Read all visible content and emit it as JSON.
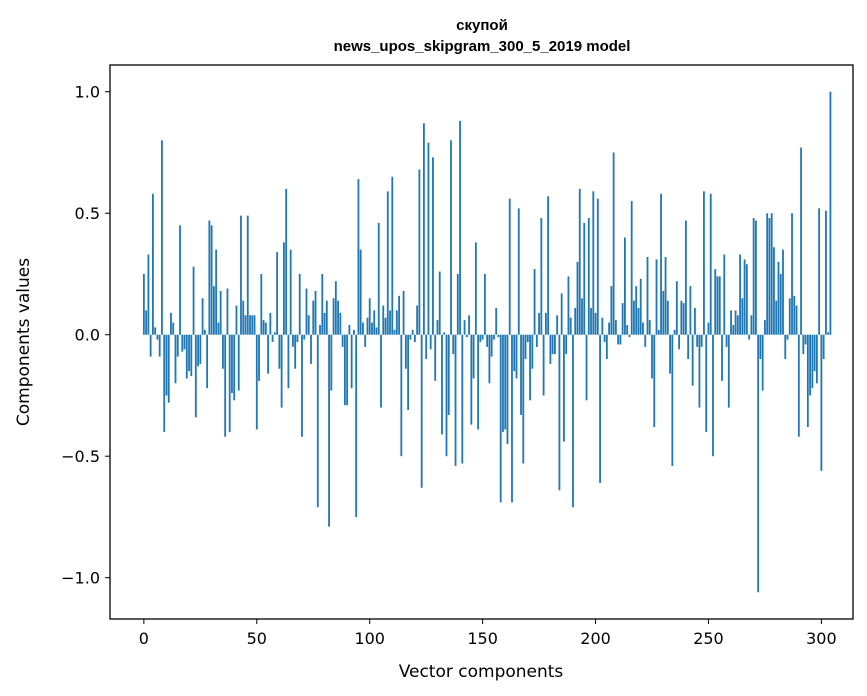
{
  "chart_data": {
    "type": "bar",
    "title": "скупой",
    "subtitle": "news_upos_skipgram_300_5_2019 model",
    "xlabel": "Vector components",
    "ylabel": "Components values",
    "xlim": [
      -15,
      314
    ],
    "ylim": [
      -1.17,
      1.11
    ],
    "xticks": [
      0,
      50,
      100,
      150,
      200,
      250,
      300
    ],
    "xtick_labels": [
      "0",
      "50",
      "100",
      "150",
      "200",
      "250",
      "300"
    ],
    "yticks": [
      1.0,
      0.5,
      0.0,
      -0.5,
      -1.0
    ],
    "ytick_labels": [
      "1.0",
      "0.5",
      "0.0",
      "−0.5",
      "−1.0"
    ],
    "bar_color": "#1f77b4",
    "values": [
      0.25,
      0.1,
      0.33,
      -0.09,
      0.58,
      0.03,
      -0.02,
      -0.09,
      0.8,
      -0.4,
      -0.25,
      -0.28,
      0.09,
      0.05,
      -0.2,
      -0.09,
      0.45,
      -0.07,
      -0.06,
      -0.18,
      -0.15,
      -0.17,
      0.28,
      -0.34,
      -0.13,
      -0.12,
      0.15,
      0.02,
      -0.22,
      0.47,
      0.45,
      0.2,
      0.35,
      0.05,
      0.18,
      -0.14,
      -0.42,
      0.19,
      -0.4,
      -0.24,
      -0.27,
      0.12,
      -0.23,
      0.49,
      0.14,
      0.08,
      0.49,
      0.08,
      0.08,
      0.08,
      -0.39,
      -0.19,
      0.25,
      0.06,
      0.05,
      -0.16,
      0.09,
      -0.03,
      0.01,
      0.34,
      -0.14,
      -0.3,
      0.38,
      0.6,
      -0.22,
      0.35,
      -0.05,
      -0.14,
      -0.03,
      0.25,
      -0.42,
      -0.02,
      0.19,
      0.08,
      -0.12,
      0.14,
      0.18,
      -0.71,
      0.04,
      0.25,
      0.09,
      0.14,
      -0.79,
      -0.23,
      0.15,
      0.22,
      0.14,
      0.09,
      -0.05,
      -0.29,
      -0.29,
      0.04,
      -0.22,
      0.02,
      -0.75,
      0.64,
      0.35,
      0.05,
      -0.05,
      0.07,
      0.15,
      0.05,
      0.1,
      0.03,
      0.46,
      -0.3,
      0.12,
      0.07,
      0.59,
      0.1,
      0.65,
      0.02,
      0.1,
      0.16,
      -0.5,
      0.18,
      -0.14,
      -0.31,
      -0.02,
      0.02,
      -0.03,
      0.12,
      0.68,
      -0.63,
      0.87,
      -0.1,
      0.79,
      -0.06,
      0.73,
      -0.19,
      0.06,
      0.26,
      -0.41,
      0.01,
      -0.5,
      -0.33,
      0.8,
      -0.08,
      -0.54,
      0.25,
      0.88,
      -0.53,
      0.06,
      -0.01,
      0.08,
      -0.37,
      -0.18,
      0.38,
      -0.39,
      -0.03,
      -0.02,
      0.25,
      -0.05,
      -0.2,
      -0.09,
      -0.02,
      0.11,
      -0.01,
      -0.69,
      -0.4,
      -0.39,
      -0.45,
      0.56,
      -0.69,
      -0.15,
      -0.18,
      0.52,
      -0.33,
      -0.53,
      -0.1,
      -0.03,
      -0.27,
      -0.14,
      0.27,
      -0.05,
      0.09,
      0.48,
      -0.25,
      0.09,
      0.57,
      -0.12,
      -0.08,
      -0.08,
      0.08,
      -0.64,
      0.17,
      -0.44,
      -0.08,
      0.24,
      0.07,
      -0.71,
      0.11,
      0.3,
      0.6,
      0.15,
      0.46,
      -0.27,
      0.48,
      0.11,
      0.59,
      0.09,
      0.56,
      -0.61,
      0.07,
      -0.03,
      -0.1,
      0.05,
      0.2,
      0.75,
      0.06,
      -0.04,
      -0.04,
      0.13,
      0.4,
      0.04,
      -0.01,
      0.55,
      0.14,
      0.2,
      0.11,
      0.23,
      0.05,
      -0.05,
      0.32,
      0.06,
      -0.18,
      -0.38,
      0.31,
      0.02,
      0.58,
      0.18,
      0.32,
      0.14,
      -0.16,
      -0.54,
      0.02,
      0.22,
      -0.06,
      0.14,
      0.13,
      0.47,
      -0.1,
      0.2,
      -0.21,
      0.11,
      -0.05,
      -0.3,
      -0.05,
      0.59,
      -0.4,
      0.05,
      0.58,
      -0.5,
      0.27,
      0.24,
      0.24,
      -0.19,
      0.33,
      -0.05,
      -0.3,
      0.1,
      0.04,
      0.1,
      0.08,
      0.33,
      0.15,
      0.31,
      0.29,
      -0.02,
      0.08,
      0.48,
      0.47,
      -1.06,
      -0.1,
      -0.23,
      0.06,
      0.5,
      0.48,
      0.5,
      0.36,
      0.14,
      0.3,
      0.25,
      0.35,
      -0.1,
      -0.02,
      0.15,
      0.5,
      0.16,
      0.12,
      -0.42,
      0.77,
      -0.08,
      -0.04,
      -0.38,
      -0.25,
      -0.22,
      -0.15,
      -0.2,
      0.52,
      -0.56,
      -0.1,
      0.51,
      0.01,
      1.0
    ]
  }
}
